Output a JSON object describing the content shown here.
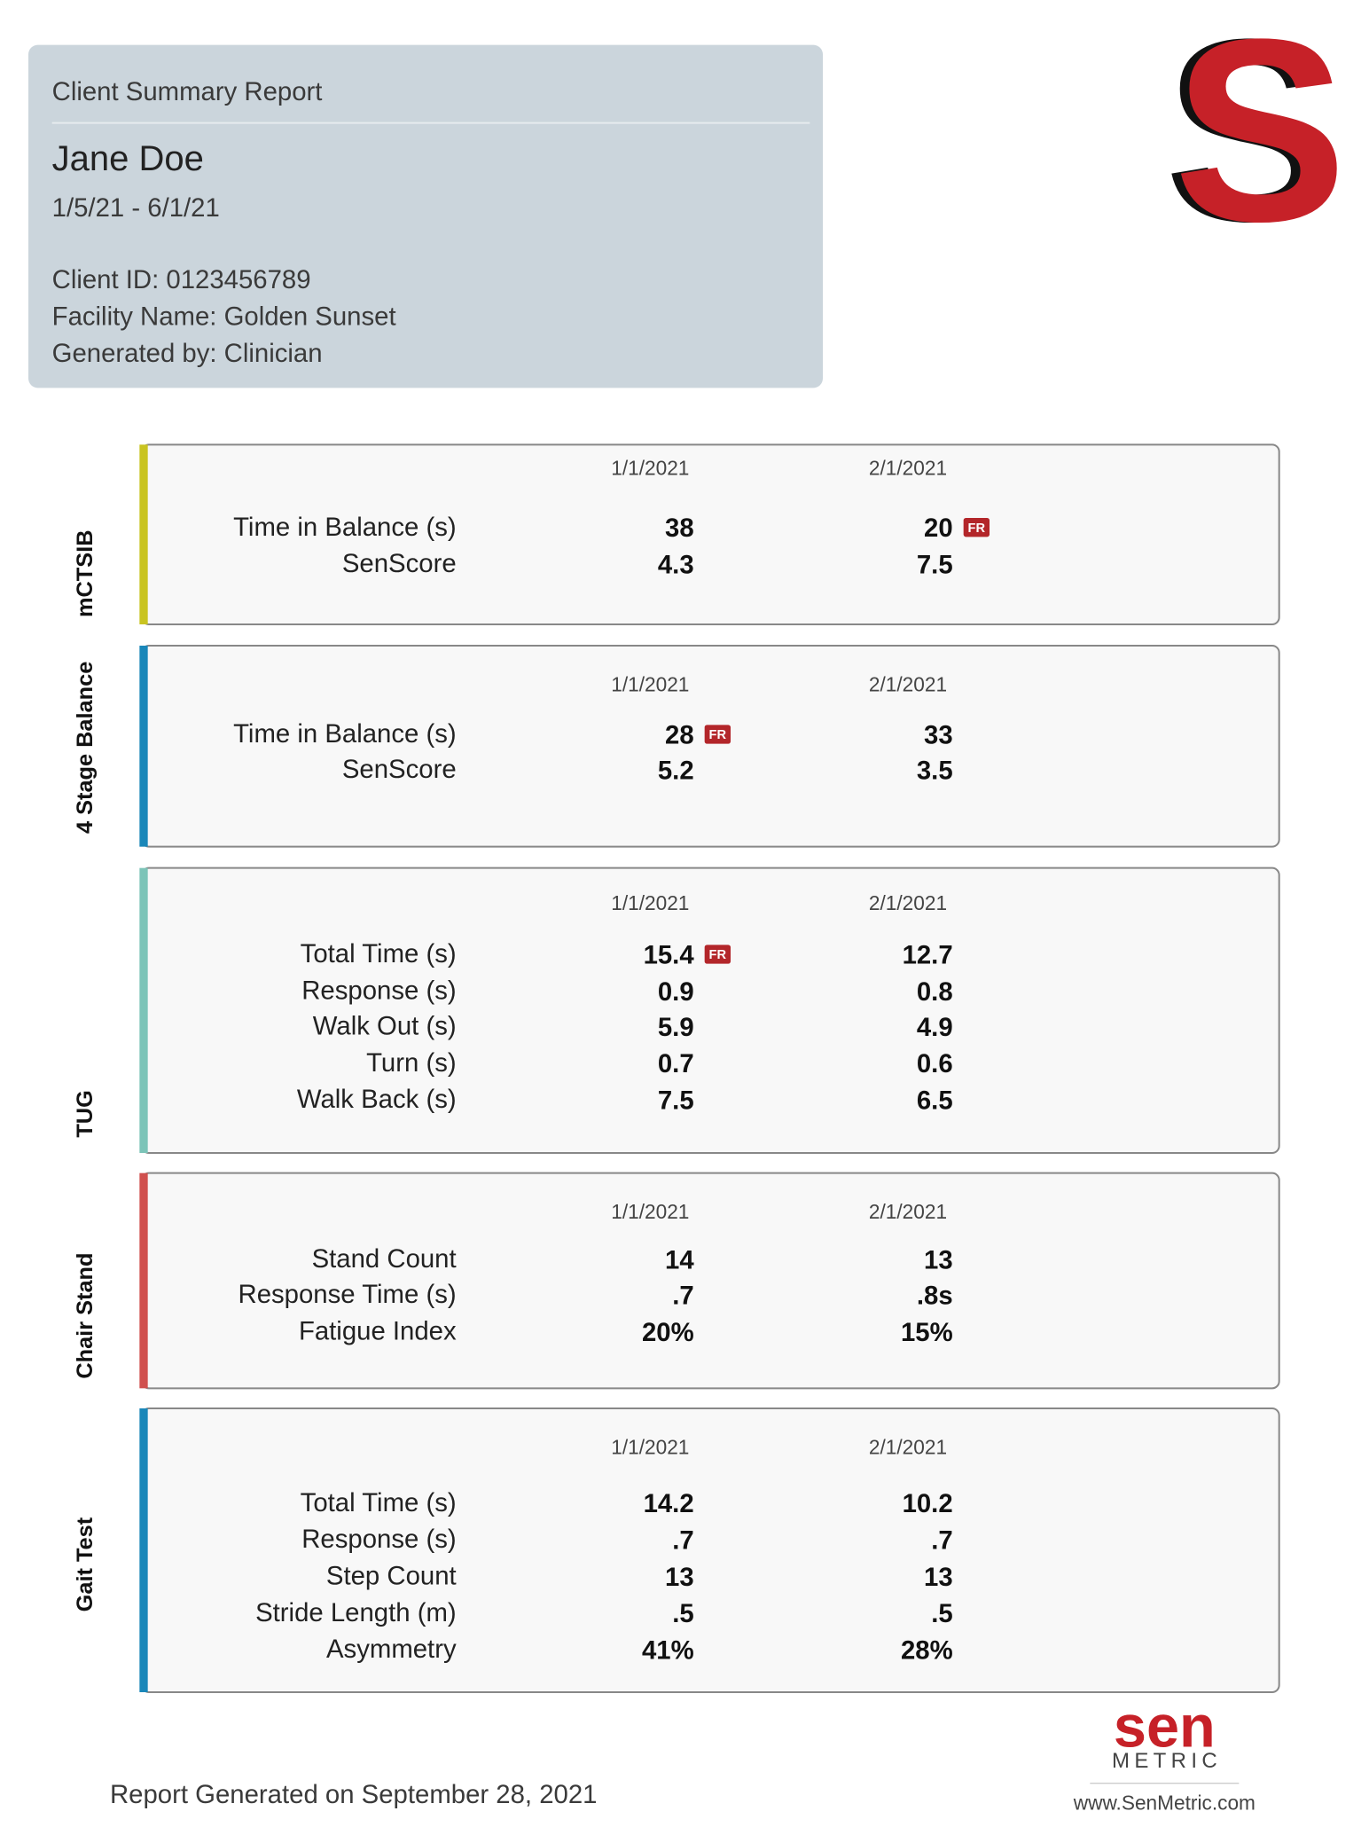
{
  "header": {
    "report_title": "Client Summary Report",
    "client_name": "Jane Doe",
    "date_range": "1/5/21 - 6/1/21",
    "client_id": "Client ID: 0123456789",
    "facility": "Facility Name: Golden Sunset",
    "generated_by": "Generated by: Clinician"
  },
  "logo": "S",
  "sections": [
    {
      "name": "mCTSIB",
      "color": "#c9c421",
      "dates": [
        "1/1/2021",
        "2/1/2021"
      ],
      "rows": [
        {
          "label": "Time in Balance (s)",
          "values": [
            {
              "value": "38"
            },
            {
              "value": "20",
              "flag": "FR"
            }
          ]
        },
        {
          "label": "SenScore",
          "values": [
            {
              "value": "4.3"
            },
            {
              "value": "7.5"
            }
          ]
        }
      ]
    },
    {
      "name": "4 Stage Balance",
      "color": "#1a87b9",
      "dates": [
        "1/1/2021",
        "2/1/2021"
      ],
      "rows": [
        {
          "label": "Time in Balance (s)",
          "values": [
            {
              "value": "28",
              "flag": "FR"
            },
            {
              "value": "33"
            }
          ]
        },
        {
          "label": "SenScore",
          "values": [
            {
              "value": "5.2"
            },
            {
              "value": "3.5"
            }
          ]
        }
      ]
    },
    {
      "name": "TUG",
      "color": "#7cc4b8",
      "dates": [
        "1/1/2021",
        "2/1/2021"
      ],
      "rows": [
        {
          "label": "Total Time (s)",
          "values": [
            {
              "value": "15.4",
              "flag": "FR"
            },
            {
              "value": "12.7"
            }
          ]
        },
        {
          "label": "Response (s)",
          "values": [
            {
              "value": "0.9"
            },
            {
              "value": "0.8"
            }
          ]
        },
        {
          "label": "Walk Out (s)",
          "values": [
            {
              "value": "5.9"
            },
            {
              "value": "4.9"
            }
          ]
        },
        {
          "label": "Turn (s)",
          "values": [
            {
              "value": "0.7"
            },
            {
              "value": "0.6"
            }
          ]
        },
        {
          "label": "Walk Back (s)",
          "values": [
            {
              "value": "7.5"
            },
            {
              "value": "6.5"
            }
          ]
        }
      ]
    },
    {
      "name": "Chair Stand",
      "color": "#d0504e",
      "dates": [
        "1/1/2021",
        "2/1/2021"
      ],
      "rows": [
        {
          "label": "Stand Count",
          "values": [
            {
              "value": "14"
            },
            {
              "value": "13"
            }
          ]
        },
        {
          "label": "Response Time (s)",
          "values": [
            {
              "value": ".7"
            },
            {
              "value": ".8s"
            }
          ]
        },
        {
          "label": "Fatigue Index",
          "values": [
            {
              "value": "20%"
            },
            {
              "value": "15%"
            }
          ]
        }
      ]
    },
    {
      "name": "Gait Test",
      "color": "#1a87b9",
      "dates": [
        "1/1/2021",
        "2/1/2021"
      ],
      "rows": [
        {
          "label": "Total Time (s)",
          "values": [
            {
              "value": "14.2"
            },
            {
              "value": "10.2"
            }
          ]
        },
        {
          "label": "Response (s)",
          "values": [
            {
              "value": ".7"
            },
            {
              "value": ".7"
            }
          ]
        },
        {
          "label": "Step Count",
          "values": [
            {
              "value": "13"
            },
            {
              "value": "13"
            }
          ]
        },
        {
          "label": "Stride Length (m)",
          "values": [
            {
              "value": ".5"
            },
            {
              "value": ".5"
            }
          ]
        },
        {
          "label": "Asymmetry",
          "values": [
            {
              "value": "41%"
            },
            {
              "value": "28%"
            }
          ]
        }
      ]
    }
  ],
  "footer": {
    "generated_on": "Report Generated on September 28, 2021",
    "brand_top": "sen",
    "brand_bottom": "METRIC",
    "website": "www.SenMetric.com"
  }
}
